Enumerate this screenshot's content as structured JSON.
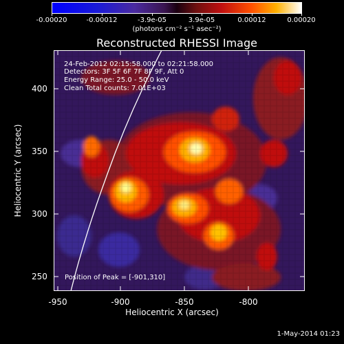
{
  "colorbar": {
    "labels": [
      "-0.00020",
      "-0.00012",
      "-3.9e-05",
      "3.9e-05",
      "0.00012",
      "0.00020"
    ],
    "unit": "(photons cm⁻² s⁻¹ asec⁻²)"
  },
  "title": "Reconstructed RHESSI Image",
  "annotations": {
    "time_range": "24-Feb-2012 02:15:58.000 to 02:21:58.000",
    "detectors": "Detectors: 3F 5F 6F 7F 8F 9F, Att 0",
    "energy_range": "Energy Range: 25.0 - 50.0 keV",
    "clean_counts": "Clean     Total counts: 7.01E+03",
    "peak_position": "Position of Peak = [-901,310]"
  },
  "axes": {
    "xlabel": "Heliocentric X (arcsec)",
    "ylabel": "Heliocentric Y (arcsec)",
    "xticks": [
      "-950",
      "-900",
      "-850",
      "-800"
    ],
    "yticks": [
      "400",
      "350",
      "300",
      "250"
    ]
  },
  "timestamp": "1-May-2014 01:23"
}
